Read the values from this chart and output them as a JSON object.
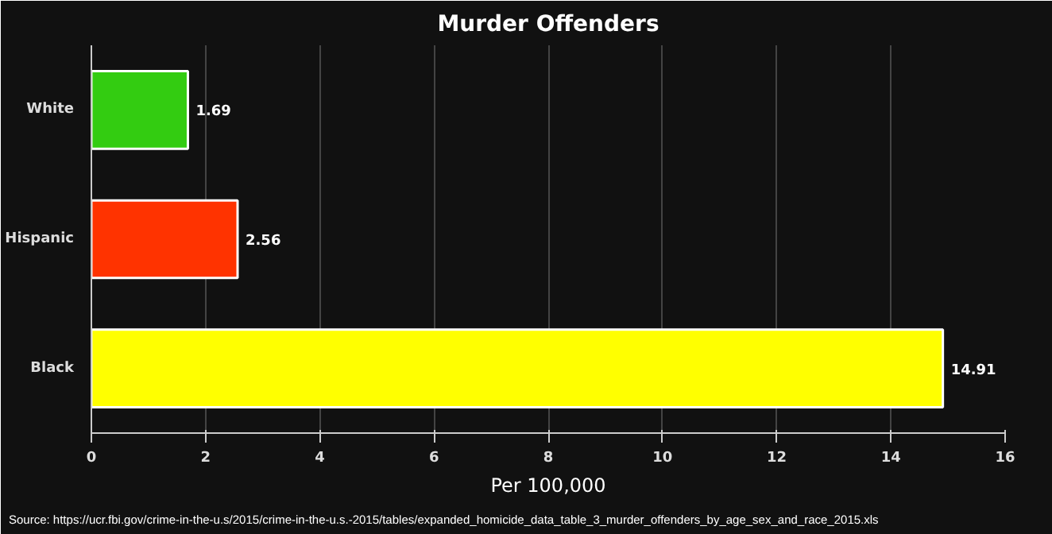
{
  "chart_data": {
    "type": "bar",
    "orientation": "horizontal",
    "title": "Murder Offenders",
    "xlabel": "Per 100,000",
    "categories": [
      "White",
      "Hispanic",
      "Black"
    ],
    "values": [
      1.69,
      2.56,
      14.91
    ],
    "colors": [
      "#33cc11",
      "#ff3300",
      "#ffff00"
    ],
    "xlim": [
      0,
      16
    ],
    "xticks": [
      0,
      2,
      4,
      6,
      8,
      10,
      12,
      14,
      16
    ],
    "grid": "x",
    "data_labels": true,
    "annotations": [
      "Source: https://ucr.fbi.gov/crime-in-the-u.s/2015/crime-in-the-u.s.-2015/tables/expanded_homicide_data_table_3_murder_offenders_by_age_sex_and_race_2015.xls"
    ]
  }
}
